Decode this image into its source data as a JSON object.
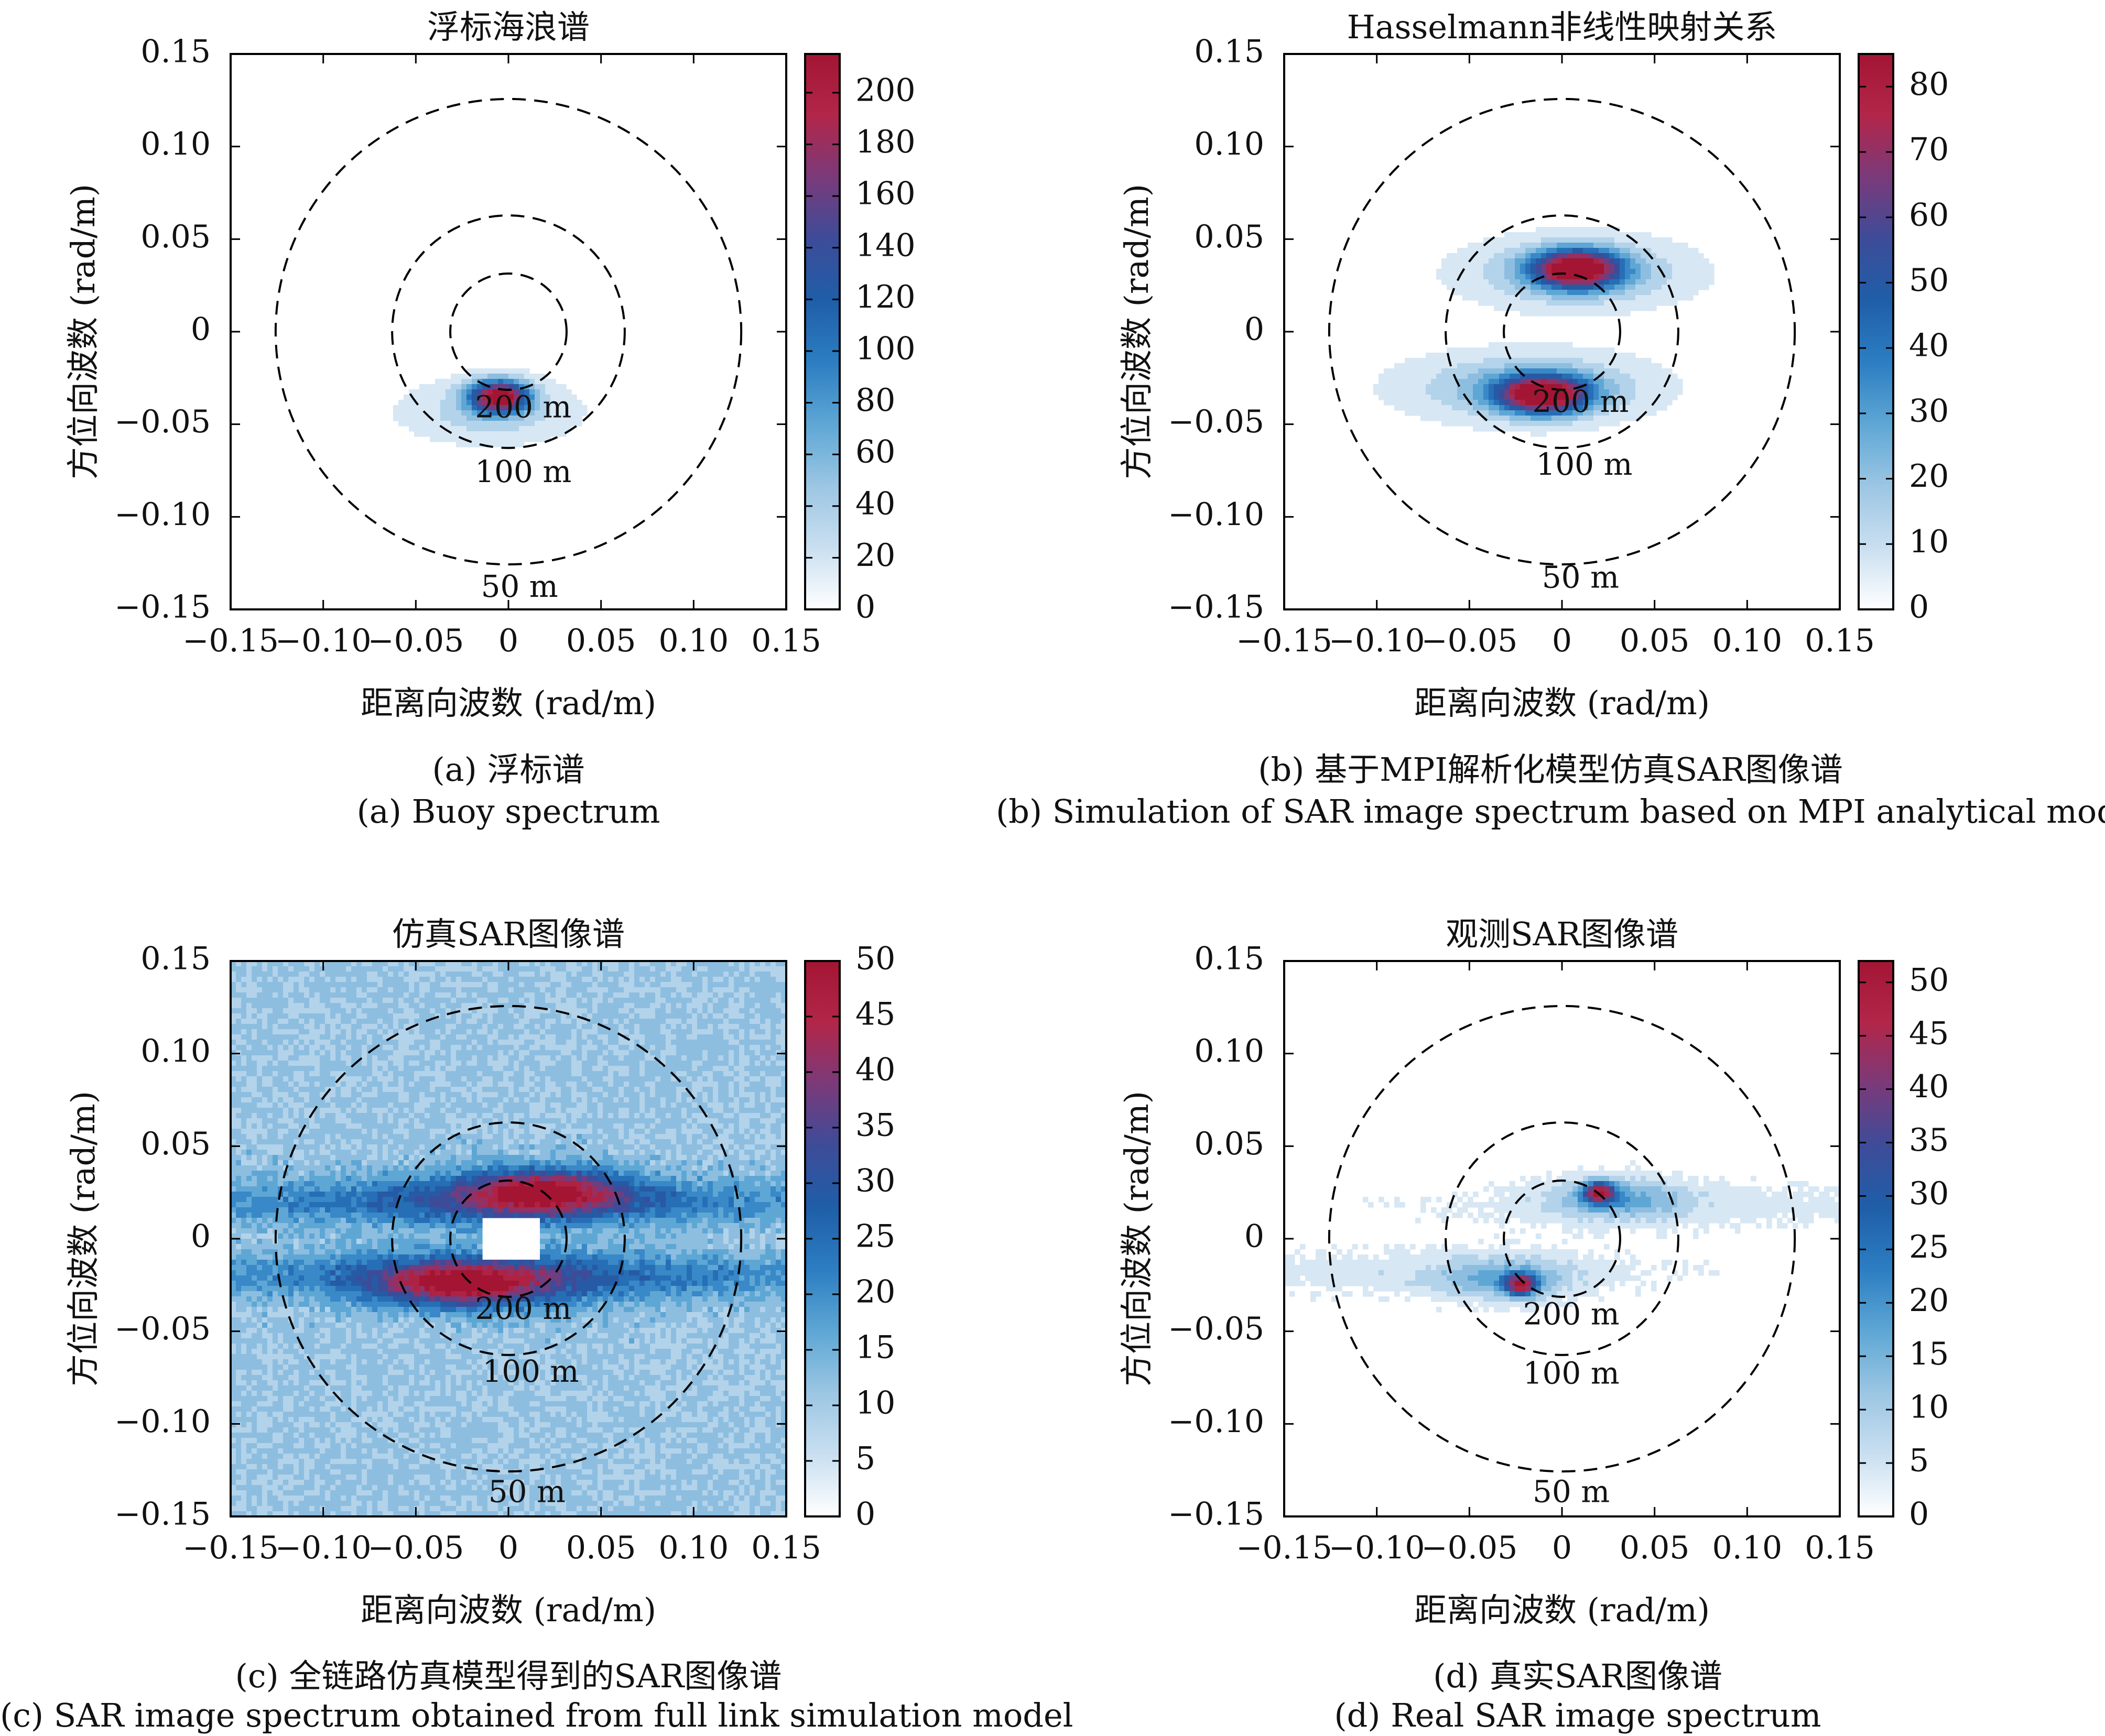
{
  "colors": {
    "colormap": [
      "#ffffff",
      "#c9dff0",
      "#9cc6e3",
      "#5ea7d5",
      "#2c7ec2",
      "#1f5ea8",
      "#3d4c99",
      "#7a3a7a",
      "#b22649",
      "#a31533"
    ],
    "contour_ring": "#000000",
    "axis": "#000000"
  },
  "captions": {
    "a_zh": "(a) 浮标谱",
    "a_en": "(a) Buoy spectrum",
    "b_zh": "(b) 基于MPI解析化模型仿真SAR图像谱",
    "b_en": "(b) Simulation of SAR image spectrum based on MPI analytical model",
    "c_zh": "(c) 全链路仿真模型得到的SAR图像谱",
    "c_en": "(c) SAR image spectrum obtained from full link simulation model",
    "d_zh": "(d) 真实SAR图像谱",
    "d_en": "(d) Real SAR image spectrum"
  },
  "chart_data": [
    {
      "type": "heatmap",
      "title": "浮标海浪谱",
      "xlabel": "距离向波数 (rad/m)",
      "ylabel": "方位向波数 (rad/m)",
      "xlim": [
        -0.15,
        0.15
      ],
      "ylim": [
        -0.15,
        0.15
      ],
      "xticks": [
        "−0.15",
        "−0.10",
        "−0.05",
        "0",
        "0.05",
        "0.10",
        "0.15"
      ],
      "yticks": [
        "0.15",
        "0.10",
        "0.05",
        "0",
        "−0.05",
        "−0.10",
        "−0.15"
      ],
      "colorbar": {
        "min": 0,
        "max": 215,
        "ticks": [
          0,
          20,
          40,
          60,
          80,
          100,
          120,
          140,
          160,
          180,
          200
        ]
      },
      "rings": [
        {
          "label": "200 m",
          "k": 0.0314,
          "label_x": 0.008,
          "label_y": -0.042
        },
        {
          "label": "100 m",
          "k": 0.0628,
          "label_x": 0.008,
          "label_y": -0.077
        },
        {
          "label": "50 m",
          "k": 0.1257,
          "label_x": 0.006,
          "label_y": -0.139
        }
      ],
      "background": 0,
      "blobs": [
        {
          "x": -0.005,
          "y": -0.035,
          "sx": 0.011,
          "sy": 0.006,
          "amp": 215
        },
        {
          "x": -0.01,
          "y": -0.043,
          "sx": 0.03,
          "sy": 0.011,
          "amp": 40
        }
      ]
    },
    {
      "type": "heatmap",
      "title": "Hasselmann非线性映射关系",
      "xlabel": "距离向波数 (rad/m)",
      "ylabel": "方位向波数 (rad/m)",
      "xlim": [
        -0.15,
        0.15
      ],
      "ylim": [
        -0.15,
        0.15
      ],
      "xticks": [
        "−0.15",
        "−0.10",
        "−0.05",
        "0",
        "0.05",
        "0.10",
        "0.15"
      ],
      "yticks": [
        "0.15",
        "0.10",
        "0.05",
        "0",
        "−0.05",
        "−0.10",
        "−0.15"
      ],
      "colorbar": {
        "min": 0,
        "max": 85,
        "ticks": [
          0,
          10,
          20,
          30,
          40,
          50,
          60,
          70,
          80
        ]
      },
      "rings": [
        {
          "label": "200 m",
          "k": 0.0314,
          "label_x": 0.01,
          "label_y": -0.039
        },
        {
          "label": "100 m",
          "k": 0.0628,
          "label_x": 0.012,
          "label_y": -0.073
        },
        {
          "label": "50 m",
          "k": 0.1257,
          "label_x": 0.01,
          "label_y": -0.134
        }
      ],
      "background": 0,
      "blobs": [
        {
          "x": 0.008,
          "y": 0.034,
          "sx": 0.016,
          "sy": 0.007,
          "amp": 85
        },
        {
          "x": 0.008,
          "y": 0.032,
          "sx": 0.038,
          "sy": 0.012,
          "amp": 25
        },
        {
          "x": -0.01,
          "y": -0.034,
          "sx": 0.017,
          "sy": 0.007,
          "amp": 85
        },
        {
          "x": -0.018,
          "y": -0.03,
          "sx": 0.042,
          "sy": 0.012,
          "amp": 25
        }
      ]
    },
    {
      "type": "heatmap",
      "title": "仿真SAR图像谱",
      "xlabel": "距离向波数 (rad/m)",
      "ylabel": "方位向波数 (rad/m)",
      "xlim": [
        -0.15,
        0.15
      ],
      "ylim": [
        -0.15,
        0.15
      ],
      "xticks": [
        "−0.15",
        "−0.10",
        "−0.05",
        "0",
        "0.05",
        "0.10",
        "0.15"
      ],
      "yticks": [
        "0.15",
        "0.10",
        "0.05",
        "0",
        "−0.05",
        "−0.10",
        "−0.15"
      ],
      "colorbar": {
        "min": 0,
        "max": 50,
        "ticks": [
          0,
          5,
          10,
          15,
          20,
          25,
          30,
          35,
          40,
          45,
          50
        ]
      },
      "rings": [
        {
          "label": "200 m",
          "k": 0.0314,
          "label_x": 0.008,
          "label_y": -0.039
        },
        {
          "label": "100 m",
          "k": 0.0628,
          "label_x": 0.012,
          "label_y": -0.073
        },
        {
          "label": "50 m",
          "k": 0.1257,
          "label_x": 0.01,
          "label_y": -0.138
        }
      ],
      "background": 11,
      "noise": 3.5,
      "masked_rect": {
        "x0": -0.014,
        "x1": 0.016,
        "y0": -0.01,
        "y1": 0.01
      },
      "blobs": [
        {
          "x": 0.0,
          "y": 0.02,
          "sx": 0.2,
          "sy": 0.008,
          "amp": 11
        },
        {
          "x": 0.0,
          "y": -0.02,
          "sx": 0.2,
          "sy": 0.008,
          "amp": 11
        },
        {
          "x": 0.02,
          "y": 0.026,
          "sx": 0.028,
          "sy": 0.008,
          "amp": 28
        },
        {
          "x": -0.025,
          "y": -0.025,
          "sx": 0.03,
          "sy": 0.008,
          "amp": 28
        },
        {
          "x": 0.0,
          "y": 0.022,
          "sx": 0.06,
          "sy": 0.012,
          "amp": 10
        },
        {
          "x": -0.005,
          "y": -0.022,
          "sx": 0.06,
          "sy": 0.012,
          "amp": 10
        }
      ]
    },
    {
      "type": "heatmap",
      "title": "观测SAR图像谱",
      "xlabel": "距离向波数 (rad/m)",
      "ylabel": "方位向波数 (rad/m)",
      "xlim": [
        -0.15,
        0.15
      ],
      "ylim": [
        -0.15,
        0.15
      ],
      "xticks": [
        "−0.15",
        "−0.10",
        "−0.05",
        "0",
        "0.05",
        "0.10",
        "0.15"
      ],
      "yticks": [
        "0.15",
        "0.10",
        "0.05",
        "0",
        "−0.05",
        "−0.10",
        "−0.15"
      ],
      "colorbar": {
        "min": 0,
        "max": 52,
        "ticks": [
          0,
          5,
          10,
          15,
          20,
          25,
          30,
          35,
          40,
          45,
          50
        ]
      },
      "rings": [
        {
          "label": "200 m",
          "k": 0.0314,
          "label_x": 0.005,
          "label_y": -0.042
        },
        {
          "label": "100 m",
          "k": 0.0628,
          "label_x": 0.005,
          "label_y": -0.074
        },
        {
          "label": "50 m",
          "k": 0.1257,
          "label_x": 0.005,
          "label_y": -0.138
        }
      ],
      "background": 0,
      "noise": 1.5,
      "blobs": [
        {
          "x": 0.02,
          "y": 0.025,
          "sx": 0.006,
          "sy": 0.004,
          "amp": 40
        },
        {
          "x": 0.03,
          "y": 0.022,
          "sx": 0.025,
          "sy": 0.008,
          "amp": 14
        },
        {
          "x": -0.022,
          "y": -0.025,
          "sx": 0.006,
          "sy": 0.004,
          "amp": 40
        },
        {
          "x": -0.03,
          "y": -0.022,
          "sx": 0.025,
          "sy": 0.008,
          "amp": 14
        },
        {
          "x": 0.06,
          "y": 0.018,
          "sx": 0.09,
          "sy": 0.008,
          "amp": 5
        },
        {
          "x": -0.07,
          "y": -0.018,
          "sx": 0.09,
          "sy": 0.008,
          "amp": 5
        }
      ]
    }
  ]
}
